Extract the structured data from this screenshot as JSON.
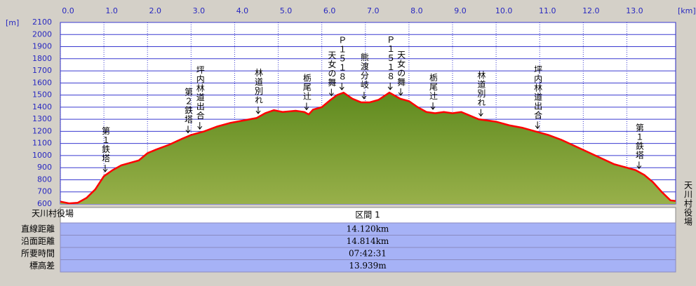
{
  "chart_data": {
    "type": "area",
    "x_unit": "[km]",
    "y_unit": "[m]",
    "x": [
      0,
      0.2,
      0.4,
      0.6,
      0.8,
      1.0,
      1.2,
      1.4,
      1.6,
      1.8,
      2.0,
      2.2,
      2.5,
      2.8,
      3.0,
      3.3,
      3.6,
      3.9,
      4.2,
      4.5,
      4.7,
      4.9,
      5.1,
      5.4,
      5.6,
      5.7,
      5.8,
      6.0,
      6.2,
      6.35,
      6.5,
      6.7,
      6.9,
      7.1,
      7.3,
      7.55,
      7.8,
      8.0,
      8.2,
      8.4,
      8.6,
      8.8,
      9.0,
      9.2,
      9.4,
      9.6,
      9.8,
      10.0,
      10.3,
      10.6,
      10.9,
      11.2,
      11.5,
      11.8,
      12.1,
      12.4,
      12.7,
      13.0,
      13.2,
      13.4,
      13.6,
      13.8,
      14.0,
      14.12
    ],
    "values": [
      620,
      605,
      610,
      650,
      720,
      830,
      880,
      920,
      940,
      960,
      1020,
      1050,
      1090,
      1140,
      1170,
      1200,
      1240,
      1270,
      1290,
      1310,
      1350,
      1375,
      1360,
      1370,
      1360,
      1340,
      1380,
      1400,
      1460,
      1500,
      1520,
      1470,
      1440,
      1440,
      1460,
      1520,
      1470,
      1450,
      1400,
      1360,
      1350,
      1360,
      1350,
      1360,
      1330,
      1300,
      1290,
      1280,
      1250,
      1230,
      1200,
      1170,
      1130,
      1080,
      1030,
      980,
      930,
      900,
      880,
      840,
      780,
      700,
      630,
      625
    ],
    "fill_color": "#7a9a2e",
    "line_color": "#ff0000",
    "xlim": [
      0,
      14.12
    ],
    "ylim": [
      600,
      2100
    ],
    "xticks": [
      {
        "value": 0,
        "label": "0.0"
      },
      {
        "value": 1,
        "label": "1.0"
      },
      {
        "value": 2,
        "label": "2.0"
      },
      {
        "value": 3,
        "label": "3.0"
      },
      {
        "value": 4,
        "label": "4.0"
      },
      {
        "value": 5,
        "label": "5.0"
      },
      {
        "value": 6,
        "label": "6.0"
      },
      {
        "value": 7,
        "label": "7.0"
      },
      {
        "value": 8,
        "label": "8.0"
      },
      {
        "value": 9,
        "label": "9.0"
      },
      {
        "value": 10,
        "label": "10.0"
      },
      {
        "value": 11,
        "label": "11.0"
      },
      {
        "value": 12,
        "label": "12.0"
      },
      {
        "value": 13,
        "label": "13.0"
      }
    ],
    "yticks": [
      600,
      700,
      800,
      900,
      1000,
      1100,
      1200,
      1300,
      1400,
      1500,
      1600,
      1700,
      1800,
      1900,
      2000,
      2100
    ],
    "grid": true,
    "annotations": [
      {
        "text": "第１鉄塔",
        "x": 1.03
      },
      {
        "text": "第２鉄塔",
        "x": 2.93
      },
      {
        "text": "坪内林道出合",
        "x": 3.2
      },
      {
        "text": "林道別れ",
        "x": 4.54
      },
      {
        "text": "栃尾辻",
        "x": 5.65
      },
      {
        "text": "天女の舞",
        "x": 6.22
      },
      {
        "text": "Ｐ１５１８",
        "x": 6.46
      },
      {
        "text": "熊渡分岐",
        "x": 6.97
      },
      {
        "text": "Ｐ１５１８",
        "x": 7.57
      },
      {
        "text": "天女の舞",
        "x": 7.81
      },
      {
        "text": "栃尾辻",
        "x": 8.55
      },
      {
        "text": "林道別れ",
        "x": 9.65
      },
      {
        "text": "坪内林道出合",
        "x": 10.95
      },
      {
        "text": "第１鉄塔",
        "x": 13.28
      }
    ],
    "start_label": "天川村役場",
    "end_label": "天川村役場"
  },
  "table": {
    "header": "区間 1",
    "rows": [
      [
        "直線距離",
        "14.120km"
      ],
      [
        "沿面距離",
        "14.814km"
      ],
      [
        "所要時間",
        "07:42:31"
      ],
      [
        "標高差",
        "13.939m"
      ]
    ]
  }
}
